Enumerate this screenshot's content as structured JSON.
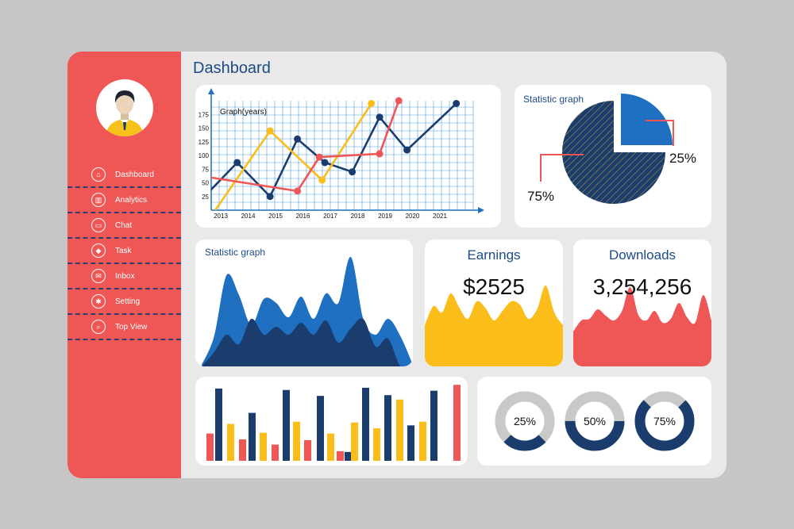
{
  "header": {
    "title": "Dashboard"
  },
  "sidebar": {
    "items": [
      {
        "label": "Dashboard",
        "icon": "home-icon"
      },
      {
        "label": "Analytics",
        "icon": "analytics-icon"
      },
      {
        "label": "Chat",
        "icon": "chat-icon"
      },
      {
        "label": "Task",
        "icon": "task-icon"
      },
      {
        "label": "Inbox",
        "icon": "inbox-icon"
      },
      {
        "label": "Setting",
        "icon": "gear-icon"
      },
      {
        "label": "Top View",
        "icon": "search-icon"
      }
    ]
  },
  "colors": {
    "red": "#ef5756",
    "navy": "#1b3d6e",
    "blue": "#1f70c1",
    "yellow": "#fbbd19",
    "grey": "#c9c9c9",
    "grid": "#4f9fdc"
  },
  "chart_data": [
    {
      "type": "line",
      "title": "Graph(years)",
      "x": [
        "2013",
        "2014",
        "2015",
        "2016",
        "2017",
        "2018",
        "2019",
        "2020",
        "2021"
      ],
      "y_ticks": [
        25,
        50,
        75,
        100,
        125,
        150,
        175
      ],
      "ylim": [
        0,
        200
      ],
      "grid": true,
      "series": [
        {
          "color": "#1b3d6e",
          "points": [
            [
              2012.6,
              35
            ],
            [
              2013.6,
              87
            ],
            [
              2014.8,
              25
            ],
            [
              2015.8,
              130
            ],
            [
              2016.8,
              87
            ],
            [
              2017.8,
              70
            ],
            [
              2018.8,
              170
            ],
            [
              2019.8,
              110
            ],
            [
              2021.6,
              195
            ]
          ]
        },
        {
          "color": "#fbbd19",
          "points": [
            [
              2012.8,
              0
            ],
            [
              2014.8,
              145
            ],
            [
              2016.7,
              55
            ],
            [
              2018.5,
              195
            ]
          ]
        },
        {
          "color": "#ef5756",
          "points": [
            [
              2012.6,
              60
            ],
            [
              2015.8,
              35
            ],
            [
              2016.6,
              97
            ],
            [
              2018.8,
              103
            ],
            [
              2019.5,
              200
            ]
          ]
        }
      ]
    },
    {
      "type": "pie",
      "title": "Statistic graph",
      "slices": [
        {
          "label": "25%",
          "value": 25,
          "color": "#1f70c1"
        },
        {
          "label": "75%",
          "value": 75,
          "color": "#1b3d6e"
        }
      ]
    },
    {
      "type": "area",
      "title": "Statistic graph",
      "series": [
        {
          "color": "#1f70c1",
          "values": [
            2,
            38,
            115,
            90,
            52,
            85,
            80,
            62,
            88,
            60,
            92,
            80,
            138,
            60,
            40,
            60,
            38,
            2
          ]
        },
        {
          "color": "#1b3d6e",
          "values": [
            0,
            18,
            40,
            28,
            60,
            40,
            50,
            40,
            55,
            40,
            58,
            30,
            48,
            60,
            25,
            35,
            0,
            0
          ]
        }
      ]
    },
    {
      "type": "bar",
      "series": [
        {
          "color": "#ef5756",
          "values": [
            37,
            29,
            22,
            28,
            13,
            26,
            103
          ]
        },
        {
          "color": "#1b3d6e",
          "values": [
            98,
            65,
            96,
            88,
            12,
            99,
            89,
            48,
            95
          ]
        },
        {
          "color": "#fbbd19",
          "values": [
            50,
            38,
            53,
            37,
            52,
            44,
            83,
            53
          ]
        }
      ]
    }
  ],
  "earnings": {
    "title": "Earnings",
    "value": "$2525",
    "color": "#fbbd19",
    "wave": [
      22,
      46,
      38,
      62,
      44,
      30,
      52,
      44,
      28,
      40,
      52,
      48,
      30,
      42,
      72,
      38,
      22
    ]
  },
  "downloads": {
    "title": "Downloads",
    "value": "3,254,256",
    "color": "#ef5756",
    "wave": [
      14,
      28,
      30,
      42,
      34,
      28,
      40,
      70,
      35,
      28,
      40,
      25,
      30,
      50,
      32,
      25,
      60,
      28
    ]
  },
  "donuts": [
    {
      "label": "25%",
      "percent": 25
    },
    {
      "label": "50%",
      "percent": 50
    },
    {
      "label": "75%",
      "percent": 75
    }
  ]
}
